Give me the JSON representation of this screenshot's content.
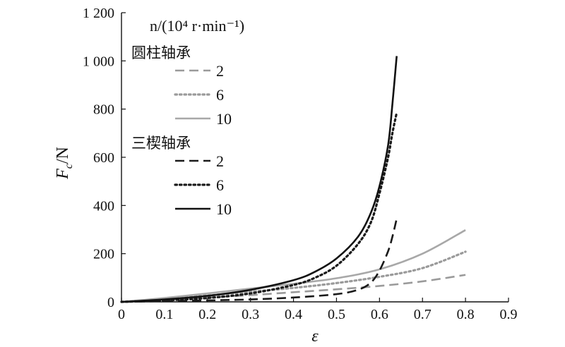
{
  "chart_data": {
    "type": "line",
    "xlabel": "ε",
    "ylabel_main": "F",
    "ylabel_sub": "c",
    "ylabel_unit": "/N",
    "xlim": [
      0,
      0.9
    ],
    "ylim": [
      0,
      1200
    ],
    "xticks": [
      0,
      0.1,
      0.2,
      0.3,
      0.4,
      0.5,
      0.6,
      0.7,
      0.8,
      0.9
    ],
    "xtick_labels": [
      "0",
      "0.1",
      "0.2",
      "0.3",
      "0.4",
      "0.5",
      "0.6",
      "0.7",
      "0.8",
      "0.9"
    ],
    "yticks": [
      0,
      200,
      400,
      600,
      800,
      1000,
      1200
    ],
    "ytick_labels": [
      "0",
      "200",
      "400",
      "600",
      "800",
      "1 000",
      "1 200"
    ],
    "grid": false,
    "legend": {
      "title": "n/(10⁴ r·min⁻¹)",
      "groups": [
        {
          "title": "圆柱轴承",
          "entries": [
            "2",
            "6",
            "10"
          ]
        },
        {
          "title": "三楔轴承",
          "entries": [
            "2",
            "6",
            "10"
          ]
        }
      ]
    },
    "series": [
      {
        "group": "圆柱轴承",
        "label": "2",
        "color": "#9a9a9a",
        "dash": "dash",
        "points": [
          [
            0,
            0
          ],
          [
            0.1,
            8
          ],
          [
            0.2,
            18
          ],
          [
            0.3,
            28
          ],
          [
            0.4,
            40
          ],
          [
            0.5,
            52
          ],
          [
            0.6,
            66
          ],
          [
            0.7,
            85
          ],
          [
            0.8,
            112
          ]
        ]
      },
      {
        "group": "圆柱轴承",
        "label": "6",
        "color": "#9a9a9a",
        "dash": "dot",
        "points": [
          [
            0,
            0
          ],
          [
            0.1,
            12
          ],
          [
            0.2,
            26
          ],
          [
            0.3,
            42
          ],
          [
            0.4,
            58
          ],
          [
            0.5,
            78
          ],
          [
            0.6,
            104
          ],
          [
            0.7,
            140
          ],
          [
            0.8,
            208
          ]
        ]
      },
      {
        "group": "圆柱轴承",
        "label": "10",
        "color": "#a8a8a8",
        "dash": "solid",
        "points": [
          [
            0,
            0
          ],
          [
            0.1,
            16
          ],
          [
            0.2,
            35
          ],
          [
            0.3,
            55
          ],
          [
            0.4,
            75
          ],
          [
            0.5,
            98
          ],
          [
            0.6,
            135
          ],
          [
            0.7,
            200
          ],
          [
            0.8,
            298
          ]
        ]
      },
      {
        "group": "三楔轴承",
        "label": "2",
        "color": "#1a1a1a",
        "dash": "dash",
        "points": [
          [
            0,
            0
          ],
          [
            0.1,
            3
          ],
          [
            0.2,
            6
          ],
          [
            0.3,
            10
          ],
          [
            0.4,
            18
          ],
          [
            0.5,
            32
          ],
          [
            0.55,
            50
          ],
          [
            0.58,
            80
          ],
          [
            0.6,
            130
          ],
          [
            0.62,
            210
          ],
          [
            0.63,
            270
          ],
          [
            0.64,
            345
          ]
        ]
      },
      {
        "group": "三楔轴承",
        "label": "6",
        "color": "#1a1a1a",
        "dash": "dot",
        "points": [
          [
            0,
            0
          ],
          [
            0.1,
            6
          ],
          [
            0.2,
            16
          ],
          [
            0.3,
            35
          ],
          [
            0.4,
            70
          ],
          [
            0.45,
            100
          ],
          [
            0.5,
            150
          ],
          [
            0.55,
            240
          ],
          [
            0.58,
            330
          ],
          [
            0.6,
            450
          ],
          [
            0.62,
            600
          ],
          [
            0.63,
            700
          ],
          [
            0.64,
            785
          ]
        ]
      },
      {
        "group": "三楔轴承",
        "label": "10",
        "color": "#111111",
        "dash": "solid",
        "points": [
          [
            0,
            0
          ],
          [
            0.1,
            10
          ],
          [
            0.2,
            25
          ],
          [
            0.3,
            50
          ],
          [
            0.4,
            90
          ],
          [
            0.45,
            125
          ],
          [
            0.5,
            180
          ],
          [
            0.55,
            270
          ],
          [
            0.58,
            370
          ],
          [
            0.6,
            480
          ],
          [
            0.62,
            650
          ],
          [
            0.63,
            820
          ],
          [
            0.64,
            1020
          ]
        ]
      }
    ]
  }
}
